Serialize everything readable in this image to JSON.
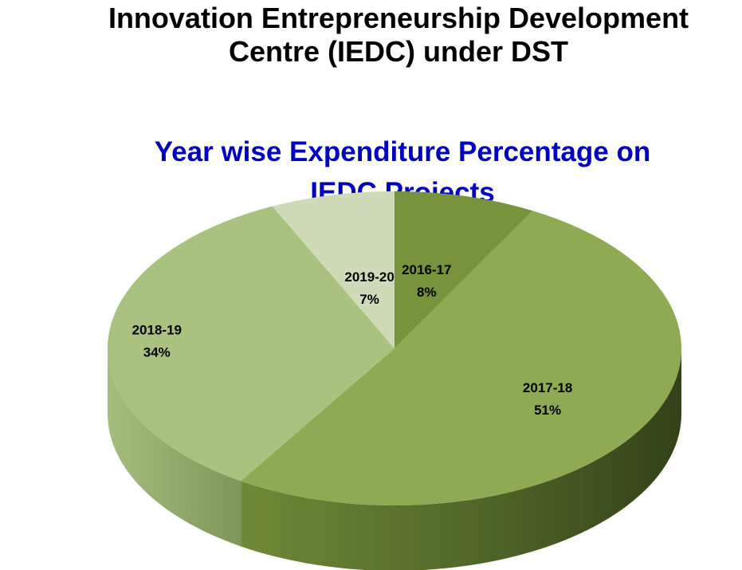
{
  "header": {
    "title_line1": "Innovation Entrepreneurship Development",
    "title_line2": "Centre (IEDC) under DST"
  },
  "chart_data": {
    "type": "pie",
    "title_line1": "Year wise Expenditure Percentage on",
    "title_line2": "IEDC Projects",
    "categories": [
      "2016-17",
      "2017-18",
      "2018-19",
      "2019-20"
    ],
    "values": [
      8,
      51,
      34,
      7
    ],
    "value_labels": [
      "8%",
      "51%",
      "34%",
      "7%"
    ],
    "colors": [
      "#77933c",
      "#8eaa52",
      "#a9c27f",
      "#cfdbb8"
    ],
    "legend": "none",
    "style": "3d-exploded-none"
  }
}
